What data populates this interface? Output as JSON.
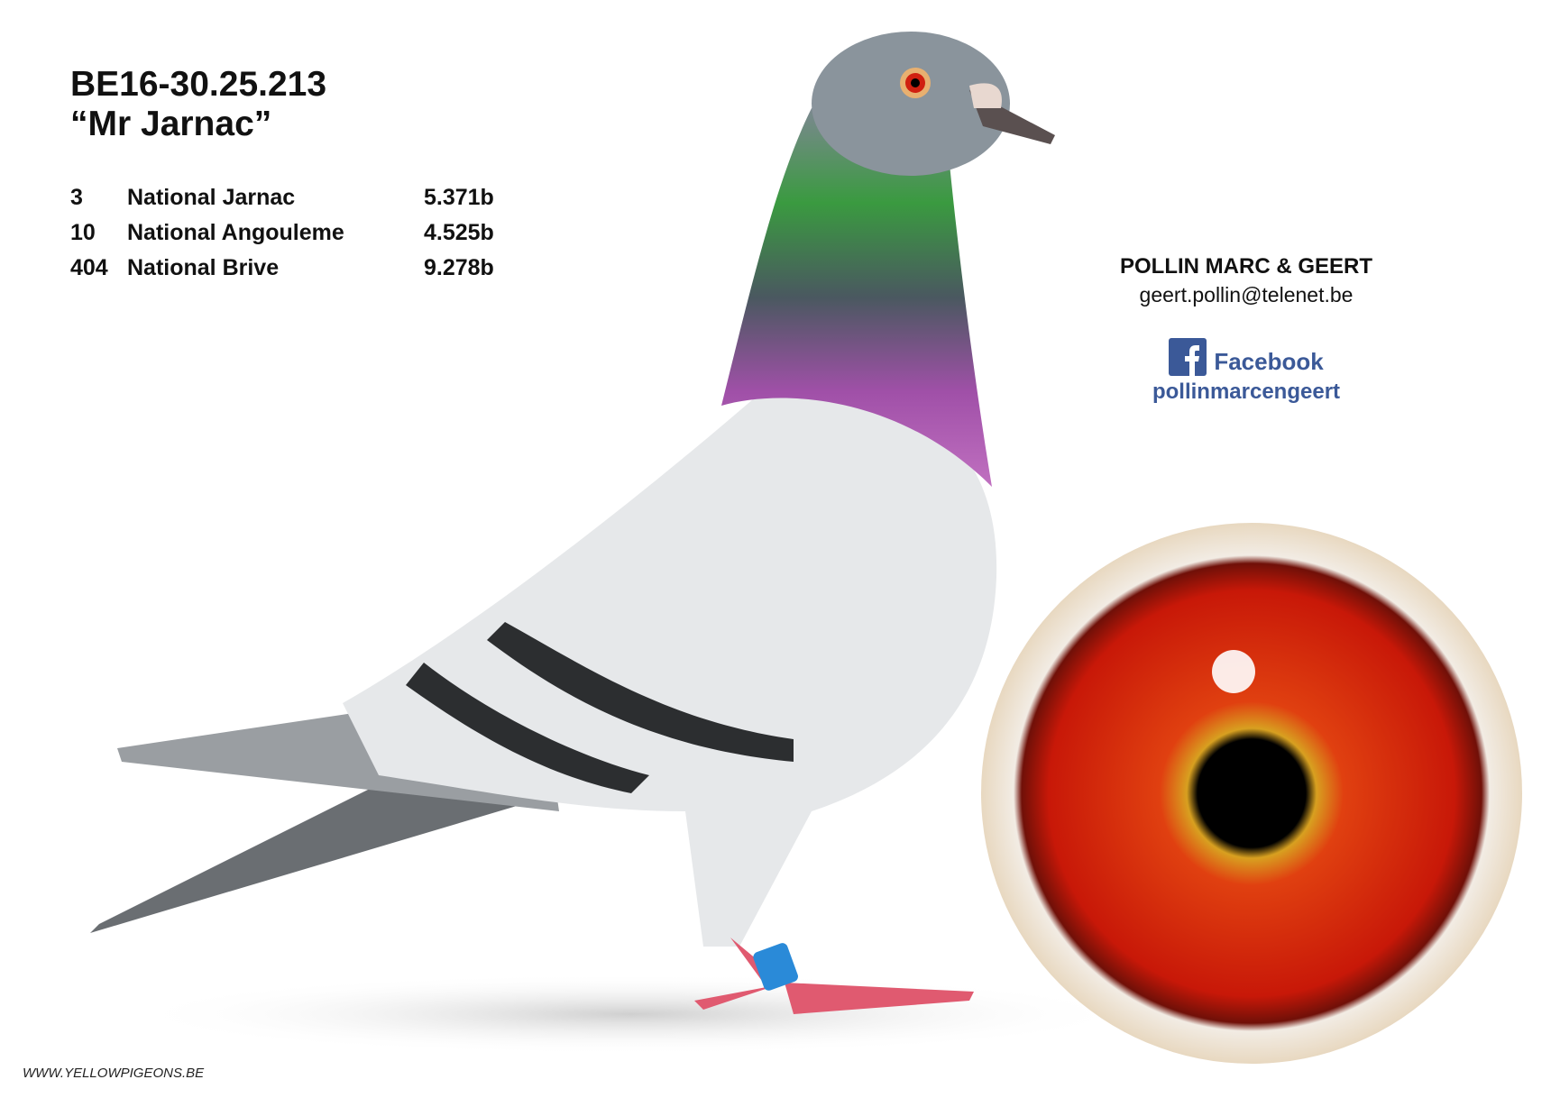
{
  "header": {
    "ring_number": "BE16-30.25.213",
    "name": "“Mr Jarnac”"
  },
  "results": [
    {
      "place": "3",
      "race": "National Jarnac",
      "birds": "5.371b"
    },
    {
      "place": "10",
      "race": "National Angouleme",
      "birds": "4.525b"
    },
    {
      "place": "404",
      "race": "National Brive",
      "birds": "9.278b"
    }
  ],
  "contact": {
    "owner": "POLLIN MARC & GEERT",
    "email": "geert.pollin@telenet.be",
    "facebook_label": "Facebook",
    "facebook_handle": "pollinmarcengeert",
    "facebook_color": "#3b5998",
    "icon": "facebook-icon"
  },
  "footer": {
    "website": "WWW.YELLOWPIGEONS.BE"
  }
}
